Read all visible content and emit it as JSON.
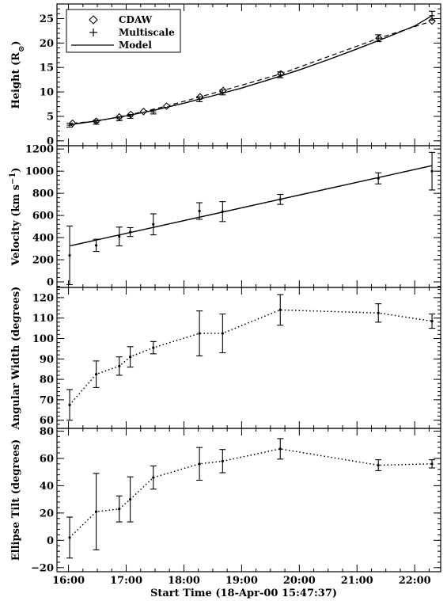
{
  "chart_data": {
    "type": "multi-panel",
    "time_format": "HH:MM (decimal hours UT)",
    "xlabel": "Start Time (18-Apr-00 15:47:37)",
    "xticks": [
      "16:00",
      "17:00",
      "18:00",
      "19:00",
      "20:00",
      "21:00",
      "22:00"
    ],
    "xlim": [
      15.8,
      22.45
    ],
    "panels": [
      {
        "id": "height",
        "ylabel_main": "Height (R",
        "ylabel_sub": "⊙",
        "ylabel_end": ")",
        "ylim": [
          -1,
          28
        ],
        "yticks": [
          0,
          5,
          10,
          15,
          20,
          25
        ],
        "legend": {
          "position": "top-left",
          "entries": [
            {
              "label": "CDAW",
              "marker": "diamond"
            },
            {
              "label": "Multiscale",
              "marker": "plus"
            },
            {
              "label": "Model",
              "marker": "line"
            }
          ]
        },
        "series": [
          {
            "name": "CDAW",
            "style": "dashed-diamond",
            "x": [
              16.07,
              16.48,
              16.88,
              17.08,
              17.3,
              17.7,
              18.28,
              18.68,
              19.68,
              21.38,
              22.3
            ],
            "y": [
              3.6,
              4.0,
              4.9,
              5.4,
              6.0,
              7.1,
              9.0,
              10.3,
              13.7,
              21.0,
              24.5
            ]
          },
          {
            "name": "Multiscale",
            "style": "plus-errorbar",
            "x": [
              16.02,
              16.48,
              16.88,
              17.07,
              17.47,
              18.27,
              18.67,
              19.67,
              21.37,
              22.3
            ],
            "y": [
              3.2,
              3.8,
              4.5,
              5.0,
              5.9,
              8.5,
              9.9,
              13.5,
              21.0,
              25.6
            ],
            "err": [
              0.4,
              0.4,
              0.4,
              0.4,
              0.4,
              0.5,
              0.5,
              0.6,
              0.7,
              0.9
            ]
          },
          {
            "name": "Model",
            "style": "solid",
            "x": [
              16.02,
              16.5,
              17.0,
              17.5,
              18.0,
              18.5,
              19.0,
              19.5,
              20.0,
              20.5,
              21.0,
              21.5,
              22.0,
              22.3
            ],
            "y": [
              3.3,
              4.1,
              5.1,
              6.3,
              7.7,
              9.2,
              10.8,
              12.6,
              14.5,
              16.6,
              18.8,
              21.1,
              23.5,
              25.6
            ]
          }
        ]
      },
      {
        "id": "velocity",
        "ylabel_main": "Velocity (km s",
        "ylabel_sup": "−1",
        "ylabel_end": ")",
        "ylim": [
          -50,
          1230
        ],
        "yticks": [
          0,
          200,
          400,
          600,
          800,
          1000,
          1200
        ],
        "series": [
          {
            "name": "",
            "style": "point-errorbar",
            "x": [
              16.02,
              16.48,
              16.88,
              17.07,
              17.47,
              18.27,
              18.67,
              19.67,
              21.37,
              22.3
            ],
            "y": [
              240,
              330,
              410,
              450,
              520,
              640,
              635,
              745,
              935,
              1000
            ],
            "err": [
              265,
              55,
              85,
              40,
              95,
              75,
              90,
              45,
              50,
              170
            ]
          },
          {
            "name": "",
            "style": "solid",
            "x": [
              16.02,
              22.3
            ],
            "y": [
              325,
              1050
            ]
          }
        ]
      },
      {
        "id": "width",
        "ylabel_main": "Angular Width (degrees)",
        "ylim": [
          56,
          125
        ],
        "yticks": [
          60,
          70,
          80,
          90,
          100,
          110,
          120
        ],
        "series": [
          {
            "name": "",
            "style": "dotted-errorbar",
            "x": [
              16.02,
              16.48,
              16.88,
              17.07,
              17.47,
              18.27,
              18.67,
              19.67,
              21.37,
              22.3
            ],
            "y": [
              67.5,
              82.5,
              86.5,
              91.0,
              95.5,
              102.5,
              102.5,
              114.0,
              112.5,
              108.5
            ],
            "err": [
              7.5,
              6.5,
              4.5,
              5.0,
              3.0,
              11.0,
              9.5,
              7.5,
              4.5,
              3.5
            ]
          }
        ]
      },
      {
        "id": "tilt",
        "ylabel_main": "Ellipse Tilt (degrees)",
        "ylim": [
          -23,
          82
        ],
        "yticks": [
          -20,
          0,
          20,
          40,
          60,
          80
        ],
        "series": [
          {
            "name": "",
            "style": "dotted-errorbar",
            "x": [
              16.02,
              16.48,
              16.88,
              17.07,
              17.47,
              18.27,
              18.67,
              19.67,
              21.37,
              22.3
            ],
            "y": [
              2,
              21,
              23,
              30,
              46,
              56,
              58,
              67,
              55,
              56
            ],
            "err": [
              15,
              28,
              9.5,
              16.5,
              8.5,
              12,
              8.5,
              7.5,
              4,
              3
            ]
          }
        ]
      }
    ]
  }
}
